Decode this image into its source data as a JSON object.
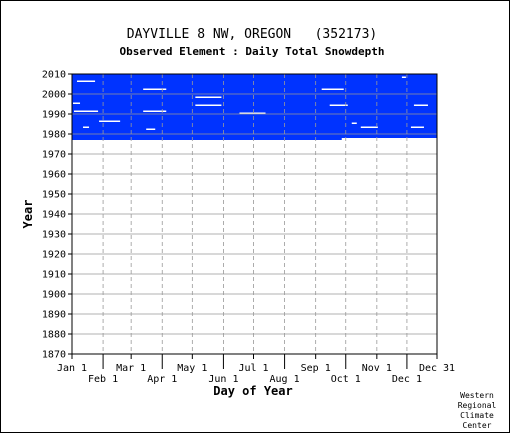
{
  "chart_data": {
    "type": "heatmap",
    "title": "DAYVILLE 8 NW, OREGON   (352173)",
    "subtitle": "Observed Element : Daily Total Snowdepth",
    "xlabel": "Day of Year",
    "ylabel": "Year",
    "ylim": [
      1870,
      2010
    ],
    "xlim": [
      1,
      365
    ],
    "y_ticks": [
      1870,
      1880,
      1890,
      1900,
      1910,
      1920,
      1930,
      1940,
      1950,
      1960,
      1970,
      1980,
      1990,
      2000,
      2010
    ],
    "x_ticks_upper": [
      {
        "label": "Jan 1",
        "day": 1
      },
      {
        "label": "Mar 1",
        "day": 60
      },
      {
        "label": "May 1",
        "day": 121
      },
      {
        "label": "Jul 1",
        "day": 182
      },
      {
        "label": "Sep 1",
        "day": 244
      },
      {
        "label": "Nov 1",
        "day": 305
      },
      {
        "label": "Dec 31",
        "day": 365
      }
    ],
    "x_ticks_lower": [
      {
        "label": "Feb 1",
        "day": 32
      },
      {
        "label": "Apr 1",
        "day": 91
      },
      {
        "label": "Jun 1",
        "day": 152
      },
      {
        "label": "Aug 1",
        "day": 213
      },
      {
        "label": "Oct 1",
        "day": 274
      },
      {
        "label": "Dec 1",
        "day": 335
      }
    ],
    "grid": true,
    "data_color": "#0033ff",
    "data_blocks": [
      {
        "day_start": 1,
        "day_end": 365,
        "year_start": 1978,
        "year_end": 2010
      },
      {
        "day_start": 1,
        "day_end": 270,
        "year_start": 1977,
        "year_end": 1978
      }
    ],
    "missing_gaps": [
      {
        "day_start": 6,
        "day_end": 24,
        "year_start": 2006,
        "year_end": 2007
      },
      {
        "day_start": 3,
        "day_end": 27,
        "year_start": 1991,
        "year_end": 1992
      },
      {
        "day_start": 28,
        "day_end": 49,
        "year_start": 1986,
        "year_end": 1987
      },
      {
        "day_start": 2,
        "day_end": 9,
        "year_start": 1995,
        "year_end": 1996
      },
      {
        "day_start": 12,
        "day_end": 18,
        "year_start": 1983,
        "year_end": 1984
      },
      {
        "day_start": 72,
        "day_end": 95,
        "year_start": 2002,
        "year_end": 2003
      },
      {
        "day_start": 72,
        "day_end": 95,
        "year_start": 1991,
        "year_end": 1992
      },
      {
        "day_start": 75,
        "day_end": 84,
        "year_start": 1982,
        "year_end": 1983
      },
      {
        "day_start": 124,
        "day_end": 150,
        "year_start": 1998,
        "year_end": 1999
      },
      {
        "day_start": 124,
        "day_end": 150,
        "year_start": 1994,
        "year_end": 1995
      },
      {
        "day_start": 168,
        "day_end": 194,
        "year_start": 1990,
        "year_end": 1991
      },
      {
        "day_start": 250,
        "day_end": 272,
        "year_start": 2002,
        "year_end": 2003
      },
      {
        "day_start": 258,
        "day_end": 276,
        "year_start": 1994,
        "year_end": 1995
      },
      {
        "day_start": 280,
        "day_end": 285,
        "year_start": 1985,
        "year_end": 1986
      },
      {
        "day_start": 289,
        "day_end": 306,
        "year_start": 1983,
        "year_end": 1984
      },
      {
        "day_start": 342,
        "day_end": 356,
        "year_start": 1994,
        "year_end": 1995
      },
      {
        "day_start": 339,
        "day_end": 352,
        "year_start": 1983,
        "year_end": 1984
      },
      {
        "day_start": 330,
        "day_end": 334,
        "year_start": 2008,
        "year_end": 2009
      }
    ]
  },
  "credit": [
    "Western",
    "Regional",
    "Climate",
    "Center"
  ]
}
